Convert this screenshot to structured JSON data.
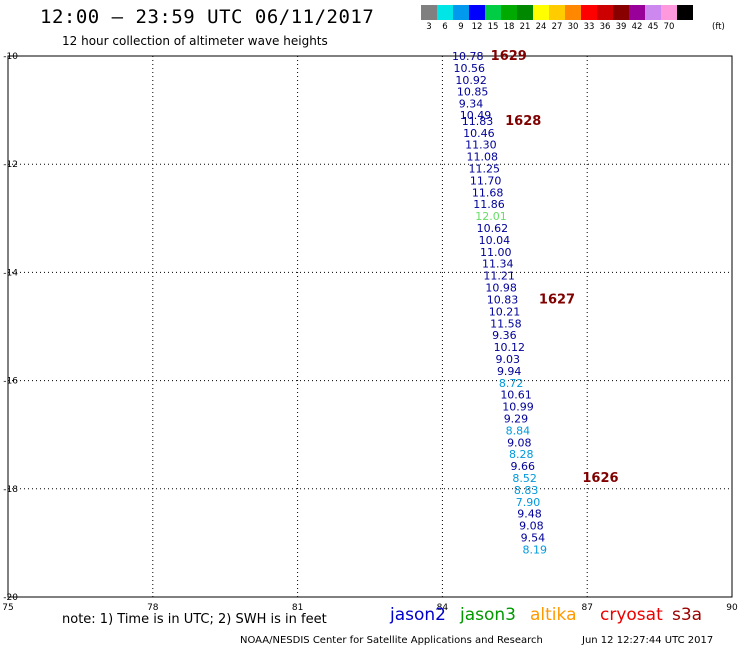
{
  "header": {
    "title": "12:00 – 23:59 UTC 06/11/2017",
    "subtitle": "12 hour collection of altimeter wave heights"
  },
  "legend": {
    "bins": [
      {
        "label": "3",
        "color": "#808080"
      },
      {
        "label": "6",
        "color": "#00e5e5"
      },
      {
        "label": "9",
        "color": "#0099ee"
      },
      {
        "label": "12",
        "color": "#0000ff"
      },
      {
        "label": "15",
        "color": "#00cc44"
      },
      {
        "label": "18",
        "color": "#00aa00"
      },
      {
        "label": "21",
        "color": "#008800"
      },
      {
        "label": "24",
        "color": "#ffff00"
      },
      {
        "label": "27",
        "color": "#ffcc00"
      },
      {
        "label": "30",
        "color": "#ff8800"
      },
      {
        "label": "33",
        "color": "#ff0000"
      },
      {
        "label": "36",
        "color": "#cc0000"
      },
      {
        "label": "39",
        "color": "#880000"
      },
      {
        "label": "42",
        "color": "#990099"
      },
      {
        "label": "45",
        "color": "#cc88ee"
      },
      {
        "label": "70",
        "color": "#ff99dd"
      },
      {
        "label": "",
        "color": "#000000"
      }
    ],
    "unit": "(ft)"
  },
  "chart_data": {
    "type": "scatter",
    "title": "12:00 – 23:59 UTC 06/11/2017",
    "subtitle": "12 hour collection of altimeter wave heights",
    "xlim": [
      75,
      90
    ],
    "ylim": [
      -20,
      -10
    ],
    "xticks": [
      75,
      78,
      81,
      84,
      87,
      90
    ],
    "yticks": [
      -10,
      -12,
      -14,
      -16,
      -18,
      -20
    ],
    "grid": true,
    "points": [
      {
        "x": 84.2,
        "y": -10.0,
        "value": "10.78",
        "color": "#000099"
      },
      {
        "x": 84.23,
        "y": -10.22,
        "value": "10.56",
        "color": "#000099"
      },
      {
        "x": 84.27,
        "y": -10.44,
        "value": "10.92",
        "color": "#000099"
      },
      {
        "x": 84.3,
        "y": -10.66,
        "value": "10.85",
        "color": "#000099"
      },
      {
        "x": 84.34,
        "y": -10.88,
        "value": "9.34",
        "color": "#000099"
      },
      {
        "x": 84.36,
        "y": -11.09,
        "value": "10.49",
        "color": "#000099"
      },
      {
        "x": 84.4,
        "y": -11.2,
        "value": "11.83",
        "color": "#000099"
      },
      {
        "x": 84.43,
        "y": -11.42,
        "value": "10.46",
        "color": "#000099"
      },
      {
        "x": 84.47,
        "y": -11.64,
        "value": "11.30",
        "color": "#000099"
      },
      {
        "x": 84.5,
        "y": -11.86,
        "value": "11.08",
        "color": "#000099"
      },
      {
        "x": 84.54,
        "y": -12.08,
        "value": "11.25",
        "color": "#000099"
      },
      {
        "x": 84.57,
        "y": -12.3,
        "value": "11.70",
        "color": "#000099"
      },
      {
        "x": 84.61,
        "y": -12.52,
        "value": "11.68",
        "color": "#000099"
      },
      {
        "x": 84.64,
        "y": -12.74,
        "value": "11.86",
        "color": "#000099"
      },
      {
        "x": 84.68,
        "y": -12.96,
        "value": "12.01",
        "color": "#66dd66"
      },
      {
        "x": 84.71,
        "y": -13.18,
        "value": "10.62",
        "color": "#000099"
      },
      {
        "x": 84.75,
        "y": -13.4,
        "value": "10.04",
        "color": "#000099"
      },
      {
        "x": 84.78,
        "y": -13.62,
        "value": "11.00",
        "color": "#000099"
      },
      {
        "x": 84.82,
        "y": -13.84,
        "value": "11.34",
        "color": "#000099"
      },
      {
        "x": 84.85,
        "y": -14.06,
        "value": "11.21",
        "color": "#000099"
      },
      {
        "x": 84.89,
        "y": -14.28,
        "value": "10.98",
        "color": "#000099"
      },
      {
        "x": 84.92,
        "y": -14.5,
        "value": "10.83",
        "color": "#000099"
      },
      {
        "x": 84.96,
        "y": -14.72,
        "value": "10.21",
        "color": "#000099"
      },
      {
        "x": 84.99,
        "y": -14.94,
        "value": "11.58",
        "color": "#000099"
      },
      {
        "x": 85.03,
        "y": -15.16,
        "value": "9.36",
        "color": "#000099"
      },
      {
        "x": 85.06,
        "y": -15.38,
        "value": "10.12",
        "color": "#000099"
      },
      {
        "x": 85.1,
        "y": -15.6,
        "value": "9.03",
        "color": "#000099"
      },
      {
        "x": 85.13,
        "y": -15.82,
        "value": "9.94",
        "color": "#000099"
      },
      {
        "x": 85.17,
        "y": -16.04,
        "value": "8.72",
        "color": "#0099dd"
      },
      {
        "x": 85.2,
        "y": -16.26,
        "value": "10.61",
        "color": "#000099"
      },
      {
        "x": 85.24,
        "y": -16.48,
        "value": "10.99",
        "color": "#000099"
      },
      {
        "x": 85.27,
        "y": -16.7,
        "value": "9.29",
        "color": "#000099"
      },
      {
        "x": 85.31,
        "y": -16.92,
        "value": "8.84",
        "color": "#0099dd"
      },
      {
        "x": 85.34,
        "y": -17.14,
        "value": "9.08",
        "color": "#000099"
      },
      {
        "x": 85.38,
        "y": -17.36,
        "value": "8.28",
        "color": "#0099dd"
      },
      {
        "x": 85.41,
        "y": -17.58,
        "value": "9.66",
        "color": "#000099"
      },
      {
        "x": 85.45,
        "y": -17.8,
        "value": "8.52",
        "color": "#0099dd"
      },
      {
        "x": 85.48,
        "y": -18.02,
        "value": "8.83",
        "color": "#0099dd"
      },
      {
        "x": 85.52,
        "y": -18.24,
        "value": "7.90",
        "color": "#0099dd"
      },
      {
        "x": 85.55,
        "y": -18.46,
        "value": "9.48",
        "color": "#000099"
      },
      {
        "x": 85.59,
        "y": -18.68,
        "value": "9.08",
        "color": "#000099"
      },
      {
        "x": 85.62,
        "y": -18.9,
        "value": "9.54",
        "color": "#000099"
      },
      {
        "x": 85.66,
        "y": -19.12,
        "value": "8.19",
        "color": "#0099dd"
      }
    ],
    "pass_labels": [
      {
        "x": 85.0,
        "y": -10.0,
        "text": "1629"
      },
      {
        "x": 85.3,
        "y": -11.2,
        "text": "1628"
      },
      {
        "x": 86.0,
        "y": -14.5,
        "text": "1627"
      },
      {
        "x": 86.9,
        "y": -17.8,
        "text": "1626"
      }
    ]
  },
  "footer": {
    "note": "note: 1) Time is in UTC; 2) SWH is in feet",
    "satellites": [
      {
        "name": "jason2",
        "color": "#0000cc"
      },
      {
        "name": "jason3",
        "color": "#009900"
      },
      {
        "name": "altika",
        "color": "#ff9900"
      },
      {
        "name": "cryosat",
        "color": "#ee0000"
      },
      {
        "name": "s3a",
        "color": "#990000"
      }
    ],
    "credit": "NOAA/NESDIS Center for Satellite Applications and Research",
    "timestamp": "Jun 12 12:27:44 UTC 2017"
  }
}
